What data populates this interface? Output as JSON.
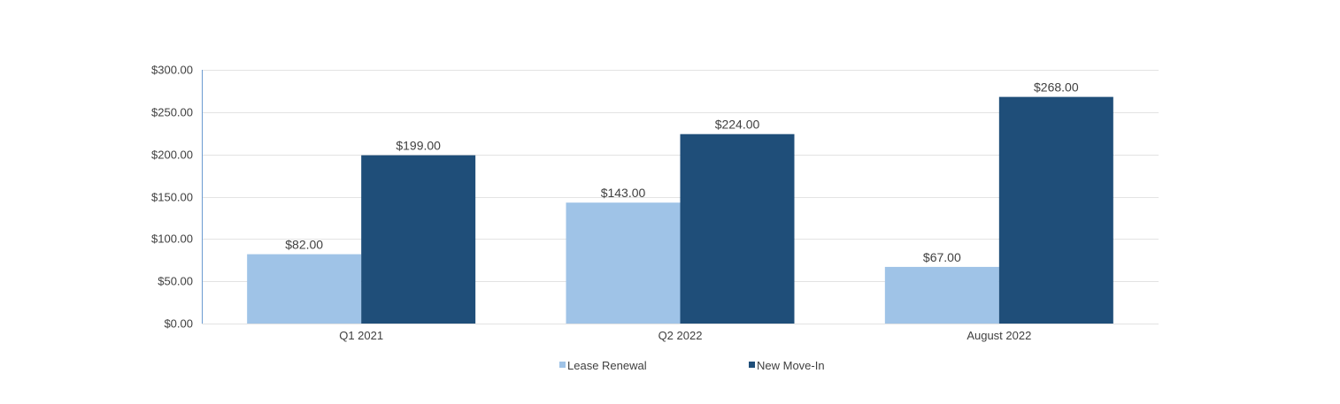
{
  "chart_data": {
    "type": "bar",
    "categories": [
      "Q1 2021",
      "Q2 2022",
      "August 2022"
    ],
    "series": [
      {
        "name": "Lease Renewal",
        "values": [
          82,
          143,
          67
        ],
        "color": "#9fc3e7"
      },
      {
        "name": "New Move-In",
        "values": [
          199,
          224,
          268
        ],
        "color": "#1f4e79"
      }
    ],
    "data_labels": [
      [
        "$82.00",
        "$143.00",
        "$67.00"
      ],
      [
        "$199.00",
        "$224.00",
        "$268.00"
      ]
    ],
    "ylim": [
      0,
      300
    ],
    "yticks": [
      0,
      50,
      100,
      150,
      200,
      250,
      300
    ],
    "ytick_labels": [
      "$0.00",
      "$50.00",
      "$100.00",
      "$150.00",
      "$200.00",
      "$250.00",
      "$300.00"
    ],
    "grid": true,
    "legend": "bottom",
    "title": "",
    "xlabel": "",
    "ylabel": "",
    "axis_color": "#6b9bd1"
  }
}
